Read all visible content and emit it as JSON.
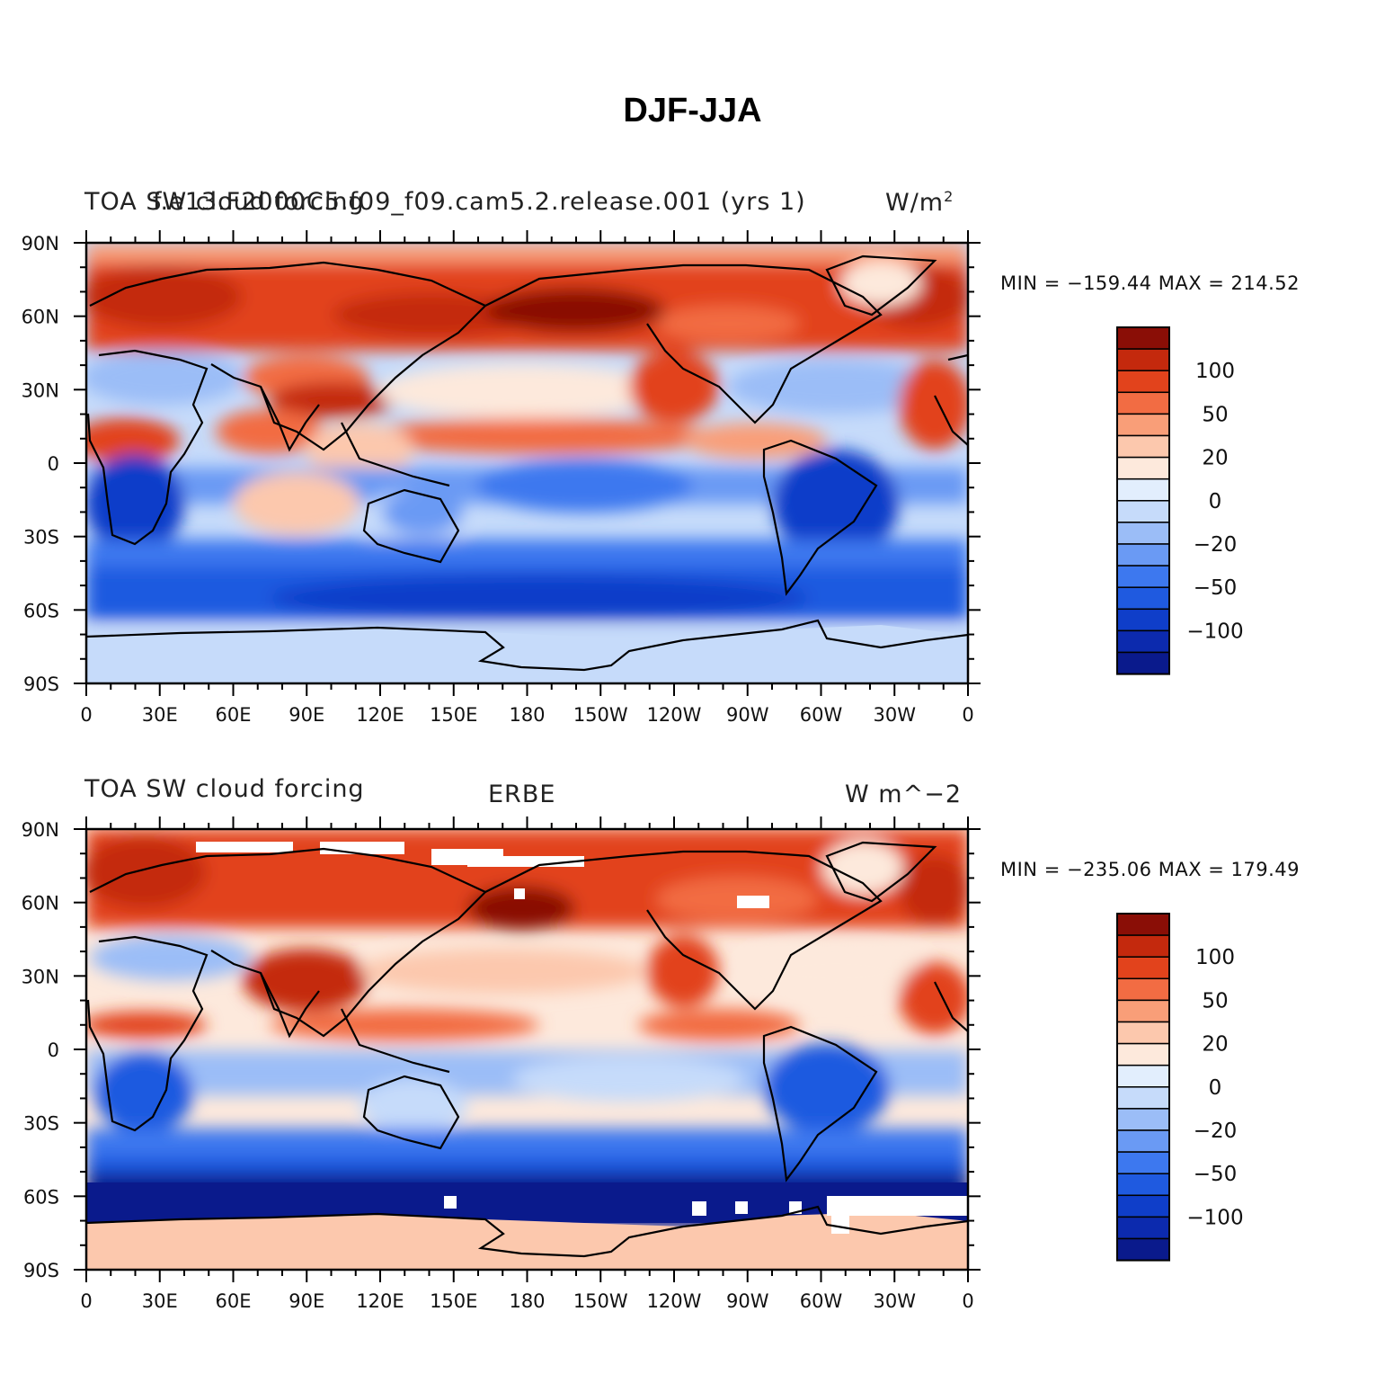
{
  "title": "DJF-JJA",
  "palette": [
    "#0a1a8c",
    "#0c2aae",
    "#0f3ec9",
    "#1f5ae0",
    "#3d78ef",
    "#6a9af4",
    "#9bbdf7",
    "#c6dbfa",
    "#e2eefd",
    "#fde9dc",
    "#fcc8ad",
    "#f99e78",
    "#f26c43",
    "#e2431c",
    "#c4290d",
    "#8a0e06"
  ],
  "colorbar_labels": [
    "100",
    "50",
    "20",
    "0",
    "−20",
    "−50",
    "−100"
  ],
  "x_ticks": [
    "0",
    "30E",
    "60E",
    "90E",
    "120E",
    "150E",
    "180",
    "150W",
    "120W",
    "90W",
    "60W",
    "30W",
    "0"
  ],
  "y_ticks": [
    "90N",
    "60N",
    "30N",
    "0",
    "30S",
    "60S",
    "90S"
  ],
  "panels": [
    {
      "left_header": "TOA SW cloud forcing",
      "overlay_header": "f.e13.F2000C5.f09_f09.cam5.2.release.001 (yrs 1)",
      "center_header": "",
      "right_header": "W/m",
      "right_header_sup": "2",
      "minmax": "MIN = −159.44  MAX = 214.52"
    },
    {
      "left_header": "TOA SW cloud forcing",
      "overlay_header": "",
      "center_header": "ERBE",
      "right_header": "W m^−2",
      "right_header_sup": "",
      "minmax": "MIN = −235.06  MAX = 179.49"
    }
  ]
}
